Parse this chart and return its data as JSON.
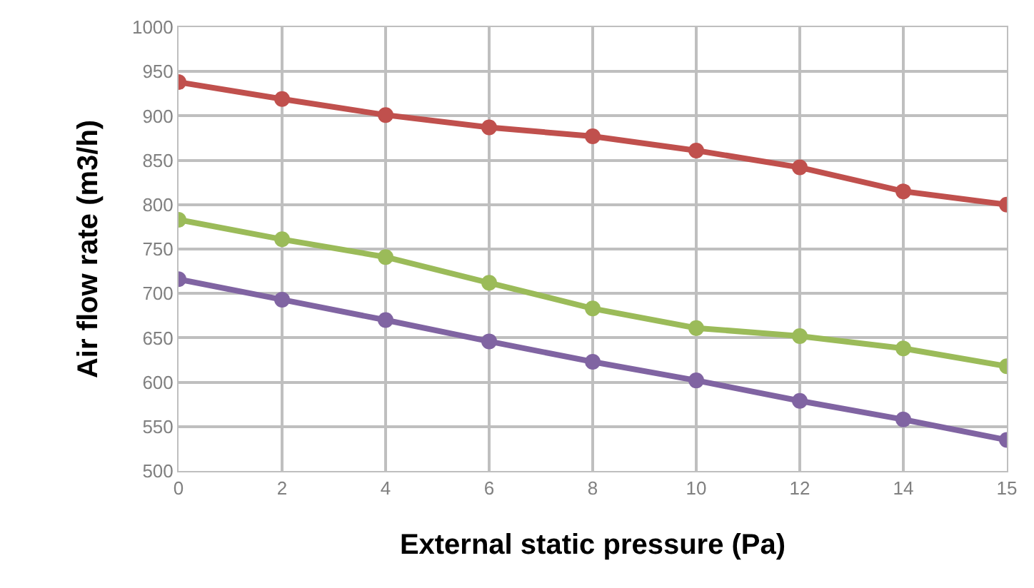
{
  "chart_data": {
    "type": "line",
    "xlabel": "External static pressure (Pa)",
    "ylabel": "Air flow rate (m3/h)",
    "categories": [
      "0",
      "2",
      "4",
      "6",
      "8",
      "10",
      "12",
      "14",
      "15"
    ],
    "series": [
      {
        "color": "#c0504d",
        "values": [
          938,
          919,
          901,
          887,
          877,
          861,
          842,
          815,
          800
        ]
      },
      {
        "color": "#9bbb59",
        "values": [
          783,
          761,
          741,
          712,
          683,
          661,
          652,
          638,
          618
        ]
      },
      {
        "color": "#8064a2",
        "values": [
          716,
          693,
          670,
          646,
          623,
          602,
          579,
          558,
          535
        ]
      }
    ],
    "ylim": [
      500,
      1000
    ],
    "yticks": [
      500,
      550,
      600,
      650,
      700,
      750,
      800,
      850,
      900,
      950,
      1000
    ],
    "grid": true,
    "marker": "circle",
    "line_style": "solid"
  }
}
